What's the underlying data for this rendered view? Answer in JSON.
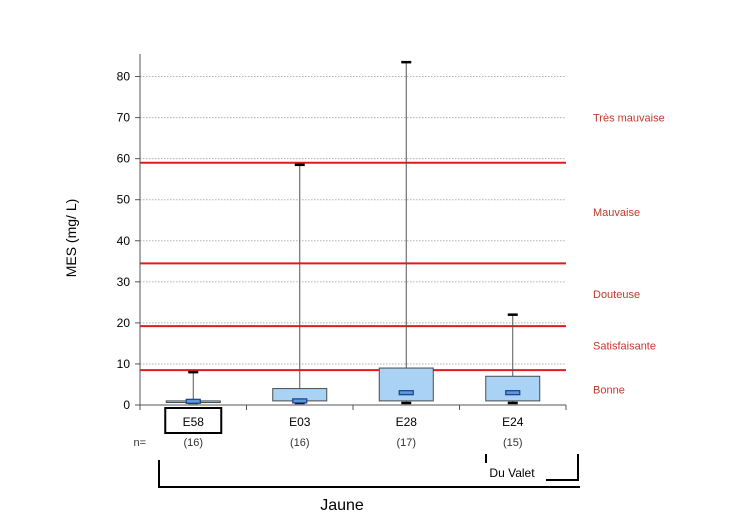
{
  "chart_data": {
    "type": "box",
    "ylabel": "MES (mg/ L)",
    "ylim": [
      0,
      85
    ],
    "yticks": [
      0,
      10,
      20,
      30,
      40,
      50,
      60,
      70,
      80
    ],
    "grid": true,
    "categories": [
      "E58",
      "E03",
      "E28",
      "E24"
    ],
    "n_prefix": "n=",
    "n_labels": [
      "(16)",
      "(16)",
      "(17)",
      "(15)"
    ],
    "boxes": [
      {
        "category": "E58",
        "min": 0.5,
        "q1": 0.6,
        "median": 0.9,
        "q3": 1.0,
        "max": 8.0
      },
      {
        "category": "E03",
        "min": 0.5,
        "q1": 1.0,
        "median": 1.0,
        "q3": 4.0,
        "max": 58.5
      },
      {
        "category": "E28",
        "min": 0.5,
        "q1": 1.0,
        "median": 3.0,
        "q3": 9.0,
        "max": 83.5
      },
      {
        "category": "E24",
        "min": 0.5,
        "q1": 1.0,
        "median": 3.0,
        "q3": 7.0,
        "max": 22.0
      }
    ],
    "thresholds": [
      8.5,
      19.2,
      34.5,
      59.0
    ],
    "quality_classes": [
      {
        "label": "Très mauvaise",
        "value": 70
      },
      {
        "label": "Mauvaise",
        "value": 47
      },
      {
        "label": "Douteuse",
        "value": 27
      },
      {
        "label": "Satisfaisante",
        "value": 14.5
      },
      {
        "label": "Bonne",
        "value": 3.8
      }
    ],
    "highlighted_category": "E58",
    "groups": [
      {
        "label": "Jaune",
        "categories": [
          "E58",
          "E03",
          "E28",
          "E24"
        ]
      },
      {
        "label": "Du Valet",
        "categories": [
          "E24"
        ]
      }
    ],
    "colors": {
      "box_fill": "#a9d2f5",
      "box_stroke": "#4a4a4a",
      "median_fill": "#5b9bd5",
      "median_stroke": "#1f3a93",
      "threshold": "#e31a1c",
      "class_label": "#c0392b",
      "grid": "#b0b0b0",
      "axis": "#555555"
    }
  }
}
